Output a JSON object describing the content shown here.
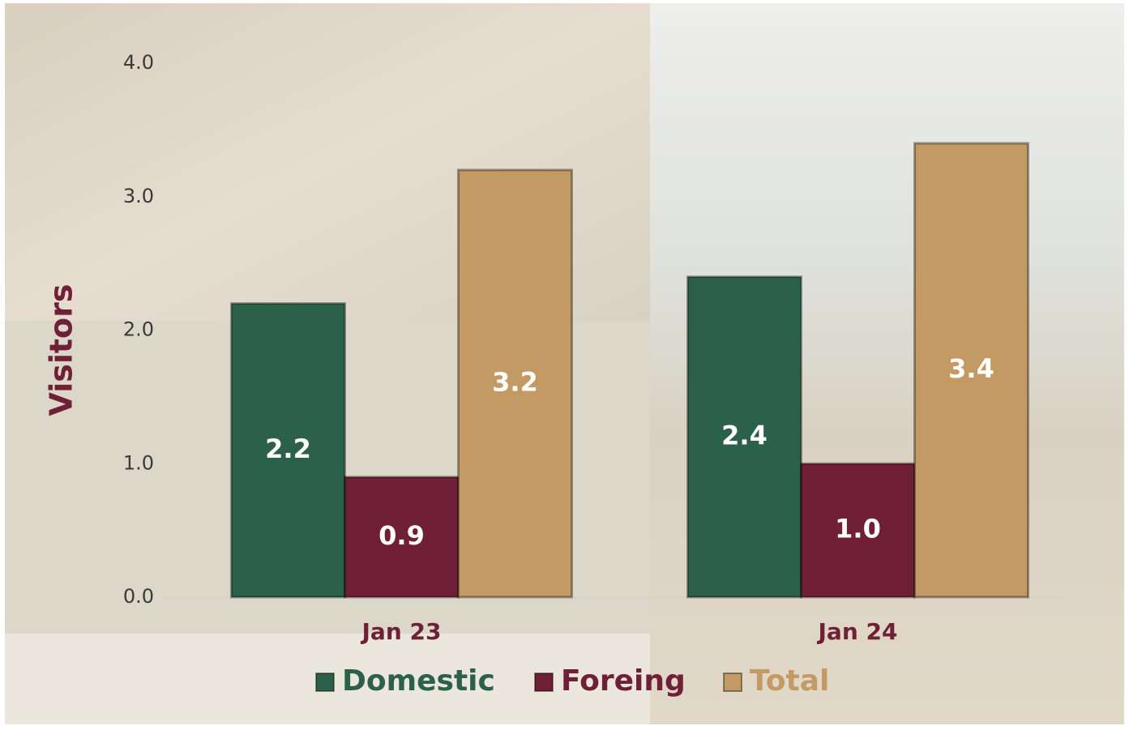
{
  "chart_data": {
    "type": "bar",
    "y_label": "Visitors",
    "categories": [
      "Jan 23",
      "Jan 24"
    ],
    "series": [
      {
        "name": "Domestic",
        "color": "#2b614a",
        "values": [
          2.2,
          2.4
        ],
        "value_labels": [
          "2.2",
          "2.4"
        ]
      },
      {
        "name": "Foreing",
        "color": "#6f1f36",
        "values": [
          0.9,
          1.0
        ],
        "value_labels": [
          "0.9",
          "1.0"
        ]
      },
      {
        "name": "Total",
        "color": "#c39a63",
        "values": [
          3.2,
          3.4
        ],
        "value_labels": [
          "3.2",
          "3.4"
        ]
      }
    ],
    "ylim": [
      0,
      4
    ],
    "yticks": [
      {
        "value": 0,
        "label": "0.0"
      },
      {
        "value": 1,
        "label": "1.0"
      },
      {
        "value": 2,
        "label": "2.0"
      },
      {
        "value": 3,
        "label": "3.0"
      },
      {
        "value": 4,
        "label": "4.0"
      }
    ],
    "legend": "bottom"
  }
}
